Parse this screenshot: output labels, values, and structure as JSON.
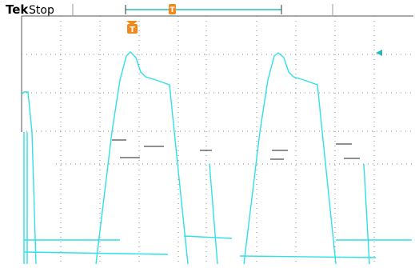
{
  "header": {
    "brand": "Tek",
    "status": "Stop"
  },
  "trigger": {
    "record_marker": "T",
    "position_marker": "T"
  }
}
